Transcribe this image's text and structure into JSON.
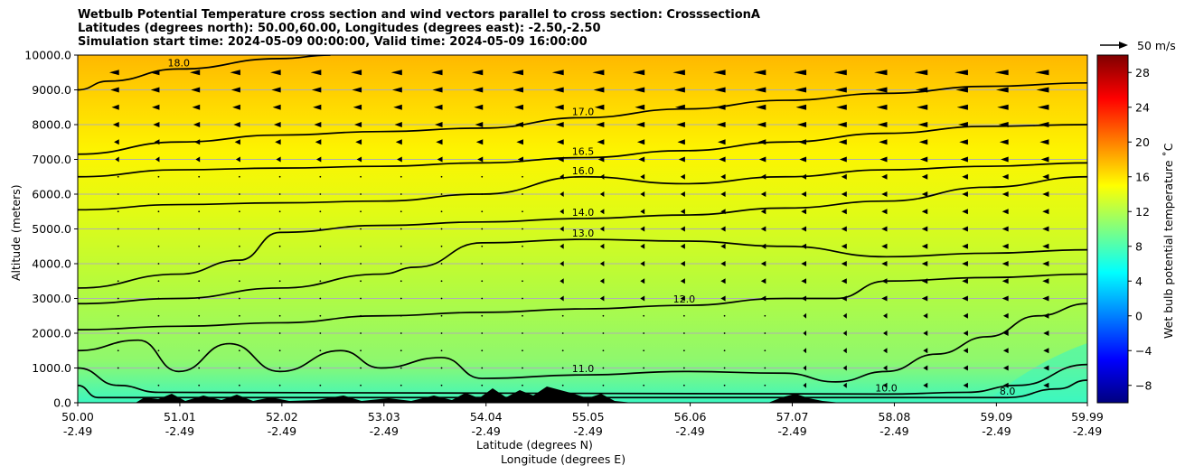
{
  "chart_data": {
    "type": "heatmap",
    "title": [
      "Wetbulb Potential Temperature cross section and wind vectors parallel to cross section: CrosssectionA",
      "Latitudes (degrees north): 50.00,60.00, Longitudes (degrees east): -2.50,-2.50",
      "Simulation start time: 2024-05-09 00:00:00, Valid time: 2024-05-09 16:00:00"
    ],
    "ylabel": "Altitude (meters)",
    "xlabel": "Latitude (degrees N)",
    "xlabel2": "Longitude (degrees E)",
    "ylim": [
      0,
      10000
    ],
    "xlim": [
      50.0,
      59.99
    ],
    "y_ticks": [
      "0.0",
      "1000.0",
      "2000.0",
      "3000.0",
      "4000.0",
      "5000.0",
      "6000.0",
      "7000.0",
      "8000.0",
      "9000.0",
      "10000.0"
    ],
    "x_ticks": [
      {
        "lat": "50.00",
        "lon": "-2.49"
      },
      {
        "lat": "51.01",
        "lon": "-2.49"
      },
      {
        "lat": "52.02",
        "lon": "-2.49"
      },
      {
        "lat": "53.03",
        "lon": "-2.49"
      },
      {
        "lat": "54.04",
        "lon": "-2.49"
      },
      {
        "lat": "55.05",
        "lon": "-2.49"
      },
      {
        "lat": "56.06",
        "lon": "-2.49"
      },
      {
        "lat": "57.07",
        "lon": "-2.49"
      },
      {
        "lat": "58.08",
        "lon": "-2.49"
      },
      {
        "lat": "59.09",
        "lon": "-2.49"
      },
      {
        "lat": "59.99",
        "lon": "-2.49"
      }
    ],
    "grid": "horizontal",
    "colorbar": {
      "label": "Wet bulb potential temperature ˚C",
      "range": [
        -10,
        30
      ],
      "ticks": [
        "−8",
        "−4",
        "0",
        "4",
        "8",
        "12",
        "16",
        "20",
        "24",
        "28"
      ],
      "colormap": "jet"
    },
    "wind_key": {
      "label": "50 m/s"
    },
    "contour_labels": [
      "18.0",
      "17.0",
      "16.0",
      "14.0",
      "13.0",
      "12.0",
      "11.0",
      "10.0",
      "8.0"
    ],
    "contours": [
      {
        "level": "18.0",
        "points": [
          [
            50.0,
            9000
          ],
          [
            50.3,
            9250
          ],
          [
            51.0,
            9600
          ],
          [
            52.0,
            9900
          ],
          [
            52.5,
            10000
          ]
        ]
      },
      {
        "level": "17.0",
        "points": [
          [
            50.0,
            7150
          ],
          [
            51.0,
            7500
          ],
          [
            52.0,
            7700
          ],
          [
            53.0,
            7800
          ],
          [
            54.0,
            7900
          ],
          [
            55.0,
            8200
          ],
          [
            56.0,
            8450
          ],
          [
            57.0,
            8700
          ],
          [
            58.0,
            8900
          ],
          [
            59.0,
            9100
          ],
          [
            59.99,
            9200
          ]
        ]
      },
      {
        "level": "16.5",
        "points": [
          [
            50.0,
            6500
          ],
          [
            51.0,
            6700
          ],
          [
            52.0,
            6750
          ],
          [
            53.0,
            6800
          ],
          [
            54.0,
            6900
          ],
          [
            55.0,
            7050
          ],
          [
            56.0,
            7250
          ],
          [
            57.0,
            7500
          ],
          [
            58.0,
            7750
          ],
          [
            59.0,
            7950
          ],
          [
            59.99,
            8000
          ]
        ]
      },
      {
        "level": "16.0",
        "points": [
          [
            50.0,
            5550
          ],
          [
            51.0,
            5700
          ],
          [
            52.0,
            5750
          ],
          [
            53.0,
            5800
          ],
          [
            54.0,
            6000
          ],
          [
            55.0,
            6500
          ],
          [
            56.0,
            6300
          ],
          [
            57.0,
            6500
          ],
          [
            58.0,
            6700
          ],
          [
            59.0,
            6800
          ],
          [
            59.99,
            6900
          ]
        ]
      },
      {
        "level": "14.0",
        "points": [
          [
            50.0,
            3300
          ],
          [
            51.0,
            3700
          ],
          [
            51.6,
            4100
          ],
          [
            52.0,
            4900
          ],
          [
            53.0,
            5100
          ],
          [
            54.0,
            5200
          ],
          [
            55.0,
            5300
          ],
          [
            56.0,
            5400
          ],
          [
            57.0,
            5600
          ],
          [
            58.0,
            5800
          ],
          [
            59.0,
            6200
          ],
          [
            59.99,
            6500
          ]
        ]
      },
      {
        "level": "13.0",
        "points": [
          [
            50.0,
            2850
          ],
          [
            51.0,
            3000
          ],
          [
            52.0,
            3300
          ],
          [
            53.0,
            3700
          ],
          [
            53.35,
            3900
          ],
          [
            54.0,
            4600
          ],
          [
            55.0,
            4700
          ],
          [
            56.0,
            4650
          ],
          [
            57.0,
            4500
          ],
          [
            58.0,
            4200
          ],
          [
            59.0,
            4300
          ],
          [
            59.99,
            4400
          ]
        ]
      },
      {
        "level": "12.0",
        "points": [
          [
            50.0,
            2100
          ],
          [
            51.0,
            2200
          ],
          [
            52.0,
            2300
          ],
          [
            53.0,
            2500
          ],
          [
            54.0,
            2600
          ],
          [
            55.0,
            2700
          ],
          [
            56.0,
            2800
          ],
          [
            57.0,
            3000
          ],
          [
            57.5,
            3000
          ],
          [
            58.0,
            3500
          ],
          [
            59.0,
            3600
          ],
          [
            59.99,
            3700
          ]
        ]
      },
      {
        "level": "11.0",
        "points": [
          [
            50.0,
            1500
          ],
          [
            50.6,
            1800
          ],
          [
            51.0,
            900
          ],
          [
            51.5,
            1700
          ],
          [
            52.0,
            900
          ],
          [
            52.6,
            1500
          ],
          [
            53.0,
            1000
          ],
          [
            53.6,
            1300
          ],
          [
            54.0,
            700
          ],
          [
            55.0,
            800
          ],
          [
            56.0,
            900
          ],
          [
            57.0,
            850
          ],
          [
            57.5,
            600
          ],
          [
            58.0,
            900
          ],
          [
            58.5,
            1400
          ],
          [
            59.0,
            1900
          ],
          [
            59.5,
            2500
          ],
          [
            59.99,
            2850
          ]
        ]
      },
      {
        "level": "10.0",
        "points": [
          [
            50.0,
            1000
          ],
          [
            50.4,
            500
          ],
          [
            50.8,
            300
          ],
          [
            58.0,
            250
          ],
          [
            58.8,
            300
          ],
          [
            59.3,
            500
          ],
          [
            59.99,
            1100
          ]
        ]
      },
      {
        "level": "8.0",
        "points": [
          [
            50.0,
            500
          ],
          [
            50.2,
            150
          ],
          [
            59.2,
            150
          ],
          [
            59.7,
            400
          ],
          [
            59.99,
            650
          ]
        ]
      }
    ],
    "wind_rows_alt": [
      9500,
      9000,
      8500,
      8000,
      7500,
      7000,
      6500,
      6000,
      5500,
      5000,
      4500,
      4000,
      3500,
      3000,
      2500,
      2000,
      1500,
      1000,
      500
    ],
    "wind_cols_lat": [
      50.4,
      50.8,
      51.2,
      51.6,
      52.0,
      52.4,
      52.8,
      53.2,
      53.6,
      54.0,
      54.4,
      54.8,
      55.2,
      55.6,
      56.0,
      56.4,
      56.8,
      57.2,
      57.6,
      58.0,
      58.4,
      58.8,
      59.2,
      59.6
    ]
  }
}
